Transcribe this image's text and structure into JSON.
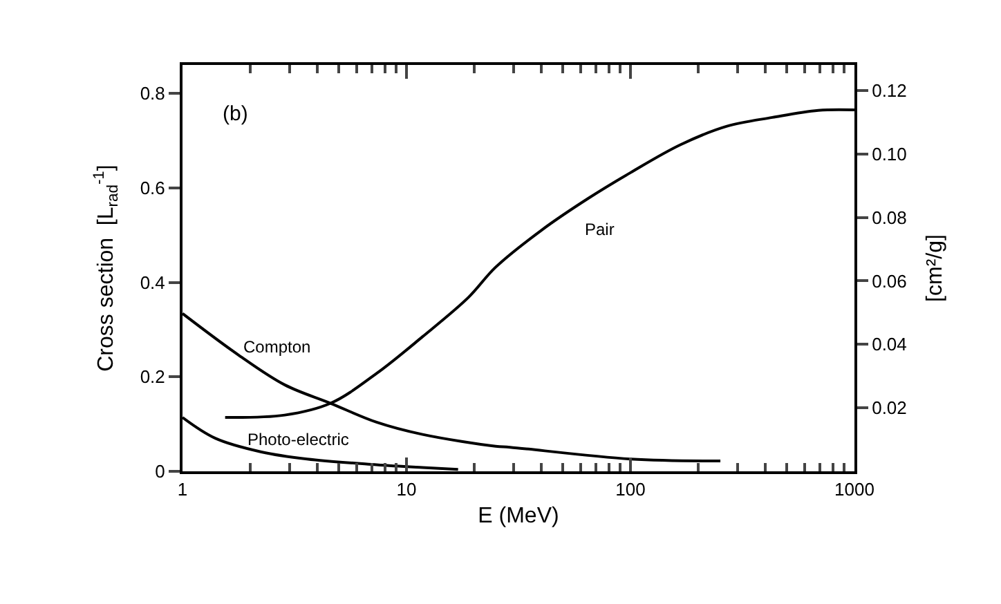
{
  "chart_data": {
    "type": "line",
    "xlabel": "E (MeV)",
    "ylabel": "Cross section  [L$_{rad}$$^{-1}$]",
    "y2label": "[cm²/g]",
    "log": "x",
    "marker": "none",
    "line_style": "solid",
    "xlim": [
      1,
      1000
    ],
    "xticks": [
      1,
      10,
      100,
      1000,
      {
        "value": 2,
        "label": null
      },
      {
        "value": 3,
        "label": null
      },
      {
        "value": 4,
        "label": null
      },
      {
        "value": 5,
        "label": null
      },
      {
        "value": 6,
        "label": null
      },
      {
        "value": 7,
        "label": null
      },
      {
        "value": 8,
        "label": null
      },
      {
        "value": 9,
        "label": null
      },
      {
        "value": 20,
        "label": null
      },
      {
        "value": 30,
        "label": null
      },
      {
        "value": 40,
        "label": null
      },
      {
        "value": 50,
        "label": null
      },
      {
        "value": 60,
        "label": null
      },
      {
        "value": 70,
        "label": null
      },
      {
        "value": 80,
        "label": null
      },
      {
        "value": 90,
        "label": null
      },
      {
        "value": 200,
        "label": null
      },
      {
        "value": 300,
        "label": null
      },
      {
        "value": 400,
        "label": null
      },
      {
        "value": 500,
        "label": null
      },
      {
        "value": 600,
        "label": null
      },
      {
        "value": 700,
        "label": null
      },
      {
        "value": 800,
        "label": null
      },
      {
        "value": 900,
        "label": null
      }
    ],
    "ylim": [
      0,
      0.86
    ],
    "yticks": [
      0,
      0.2,
      0.4,
      0.6,
      0.8
    ],
    "y2lim": [
      0,
      0.128
    ],
    "y2ticks": [
      0.02,
      0.04,
      0.06,
      0.08,
      {
        "value": 0.1,
        "label": "0.10"
      },
      0.12
    ],
    "series": [
      {
        "color": "#000000",
        "x": [
          1,
          1.78,
          2.86,
          4.58,
          7.35,
          11.8,
          25,
          29,
          100,
          252
        ],
        "values": [
          0.334,
          0.246,
          0.183,
          0.144,
          0.104,
          0.078,
          0.053,
          0.051,
          0.026,
          0.022
        ]
      },
      {
        "color": "#000000",
        "x": [
          1.55,
          2.86,
          4.58,
          7.35,
          11.8,
          18.9,
          25,
          40,
          65,
          100,
          167,
          268,
          430,
          689,
          1000
        ],
        "values": [
          0.114,
          0.119,
          0.144,
          0.207,
          0.285,
          0.368,
          0.432,
          0.51,
          0.578,
          0.632,
          0.691,
          0.73,
          0.749,
          0.764,
          0.765
        ]
      },
      {
        "color": "#000000",
        "x": [
          1,
          1.4,
          2.25,
          3.6,
          7.35,
          11.8,
          17
        ],
        "values": [
          0.114,
          0.07,
          0.041,
          0.026,
          0.014,
          0.008,
          0.004
        ]
      }
    ],
    "annotations": [
      "(b)",
      "Compton",
      "Pair",
      "Photo-electric"
    ]
  }
}
